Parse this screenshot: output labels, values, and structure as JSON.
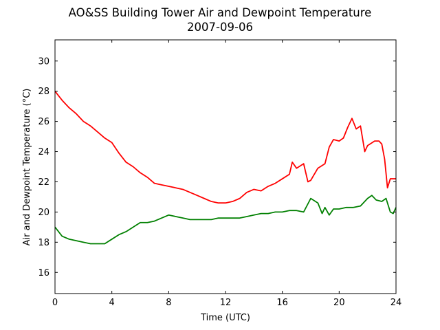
{
  "chart_data": {
    "type": "line",
    "title": "AO&SS Building Tower Air and Dewpoint Temperature",
    "subtitle": "2007-09-06",
    "xlabel": "Time (UTC)",
    "ylabel": "Air and Dewpoint Temperature (°C)",
    "xlim": [
      0,
      24
    ],
    "ylim": [
      14.6,
      31.4
    ],
    "xticks": [
      0,
      4,
      8,
      12,
      16,
      20,
      24
    ],
    "yticks": [
      16,
      18,
      20,
      22,
      24,
      26,
      28,
      30
    ],
    "xtick_labels": [
      "0",
      "4",
      "8",
      "12",
      "16",
      "20",
      "24"
    ],
    "ytick_labels": [
      "16",
      "18",
      "20",
      "22",
      "24",
      "26",
      "28",
      "30"
    ],
    "grid": false,
    "legend": "none",
    "series": [
      {
        "color": "#ff0000",
        "x": [
          0,
          0.5,
          1,
          1.5,
          2,
          2.5,
          3,
          3.5,
          4,
          4.5,
          5,
          5.5,
          6,
          6.5,
          7,
          7.5,
          8,
          8.5,
          9,
          9.5,
          10,
          10.5,
          11,
          11.5,
          12,
          12.5,
          13,
          13.5,
          14,
          14.5,
          15,
          15.5,
          16,
          16.5,
          16.7,
          17,
          17.5,
          17.8,
          18,
          18.5,
          19,
          19.3,
          19.6,
          20,
          20.3,
          20.6,
          20.9,
          21.2,
          21.5,
          21.8,
          22,
          22.5,
          22.8,
          23,
          23.2,
          23.4,
          23.6,
          23.8,
          24
        ],
        "y": [
          28,
          27.4,
          26.9,
          26.5,
          26,
          25.7,
          25.3,
          24.9,
          24.6,
          23.9,
          23.3,
          23,
          22.6,
          22.3,
          21.9,
          21.8,
          21.7,
          21.6,
          21.5,
          21.3,
          21.1,
          20.9,
          20.7,
          20.6,
          20.6,
          20.7,
          20.9,
          21.3,
          21.5,
          21.4,
          21.7,
          21.9,
          22.2,
          22.5,
          23.3,
          22.9,
          23.2,
          22.0,
          22.1,
          22.9,
          23.2,
          24.3,
          24.8,
          24.7,
          24.9,
          25.6,
          26.2,
          25.5,
          25.7,
          24.0,
          24.4,
          24.7,
          24.7,
          24.5,
          23.5,
          21.6,
          22.2,
          22.2,
          22.2
        ]
      },
      {
        "color": "#008000",
        "x": [
          0,
          0.5,
          1,
          1.5,
          2,
          2.5,
          3,
          3.5,
          4,
          4.5,
          5,
          5.5,
          6,
          6.5,
          7,
          7.5,
          8,
          8.5,
          9,
          9.5,
          10,
          10.5,
          11,
          11.5,
          12,
          12.5,
          13,
          13.5,
          14,
          14.5,
          15,
          15.5,
          16,
          16.5,
          17,
          17.5,
          18,
          18.5,
          18.8,
          19,
          19.3,
          19.6,
          20,
          20.5,
          21,
          21.5,
          22,
          22.3,
          22.6,
          23,
          23.3,
          23.6,
          23.8,
          24
        ],
        "y": [
          19.0,
          18.4,
          18.2,
          18.1,
          18.0,
          17.9,
          17.9,
          17.9,
          18.2,
          18.5,
          18.7,
          19.0,
          19.3,
          19.3,
          19.4,
          19.6,
          19.8,
          19.7,
          19.6,
          19.5,
          19.5,
          19.5,
          19.5,
          19.6,
          19.6,
          19.6,
          19.6,
          19.7,
          19.8,
          19.9,
          19.9,
          20.0,
          20.0,
          20.1,
          20.1,
          20.0,
          20.9,
          20.6,
          19.9,
          20.3,
          19.8,
          20.2,
          20.2,
          20.3,
          20.3,
          20.4,
          20.9,
          21.1,
          20.8,
          20.7,
          20.9,
          20.0,
          19.9,
          20.3
        ]
      }
    ]
  }
}
